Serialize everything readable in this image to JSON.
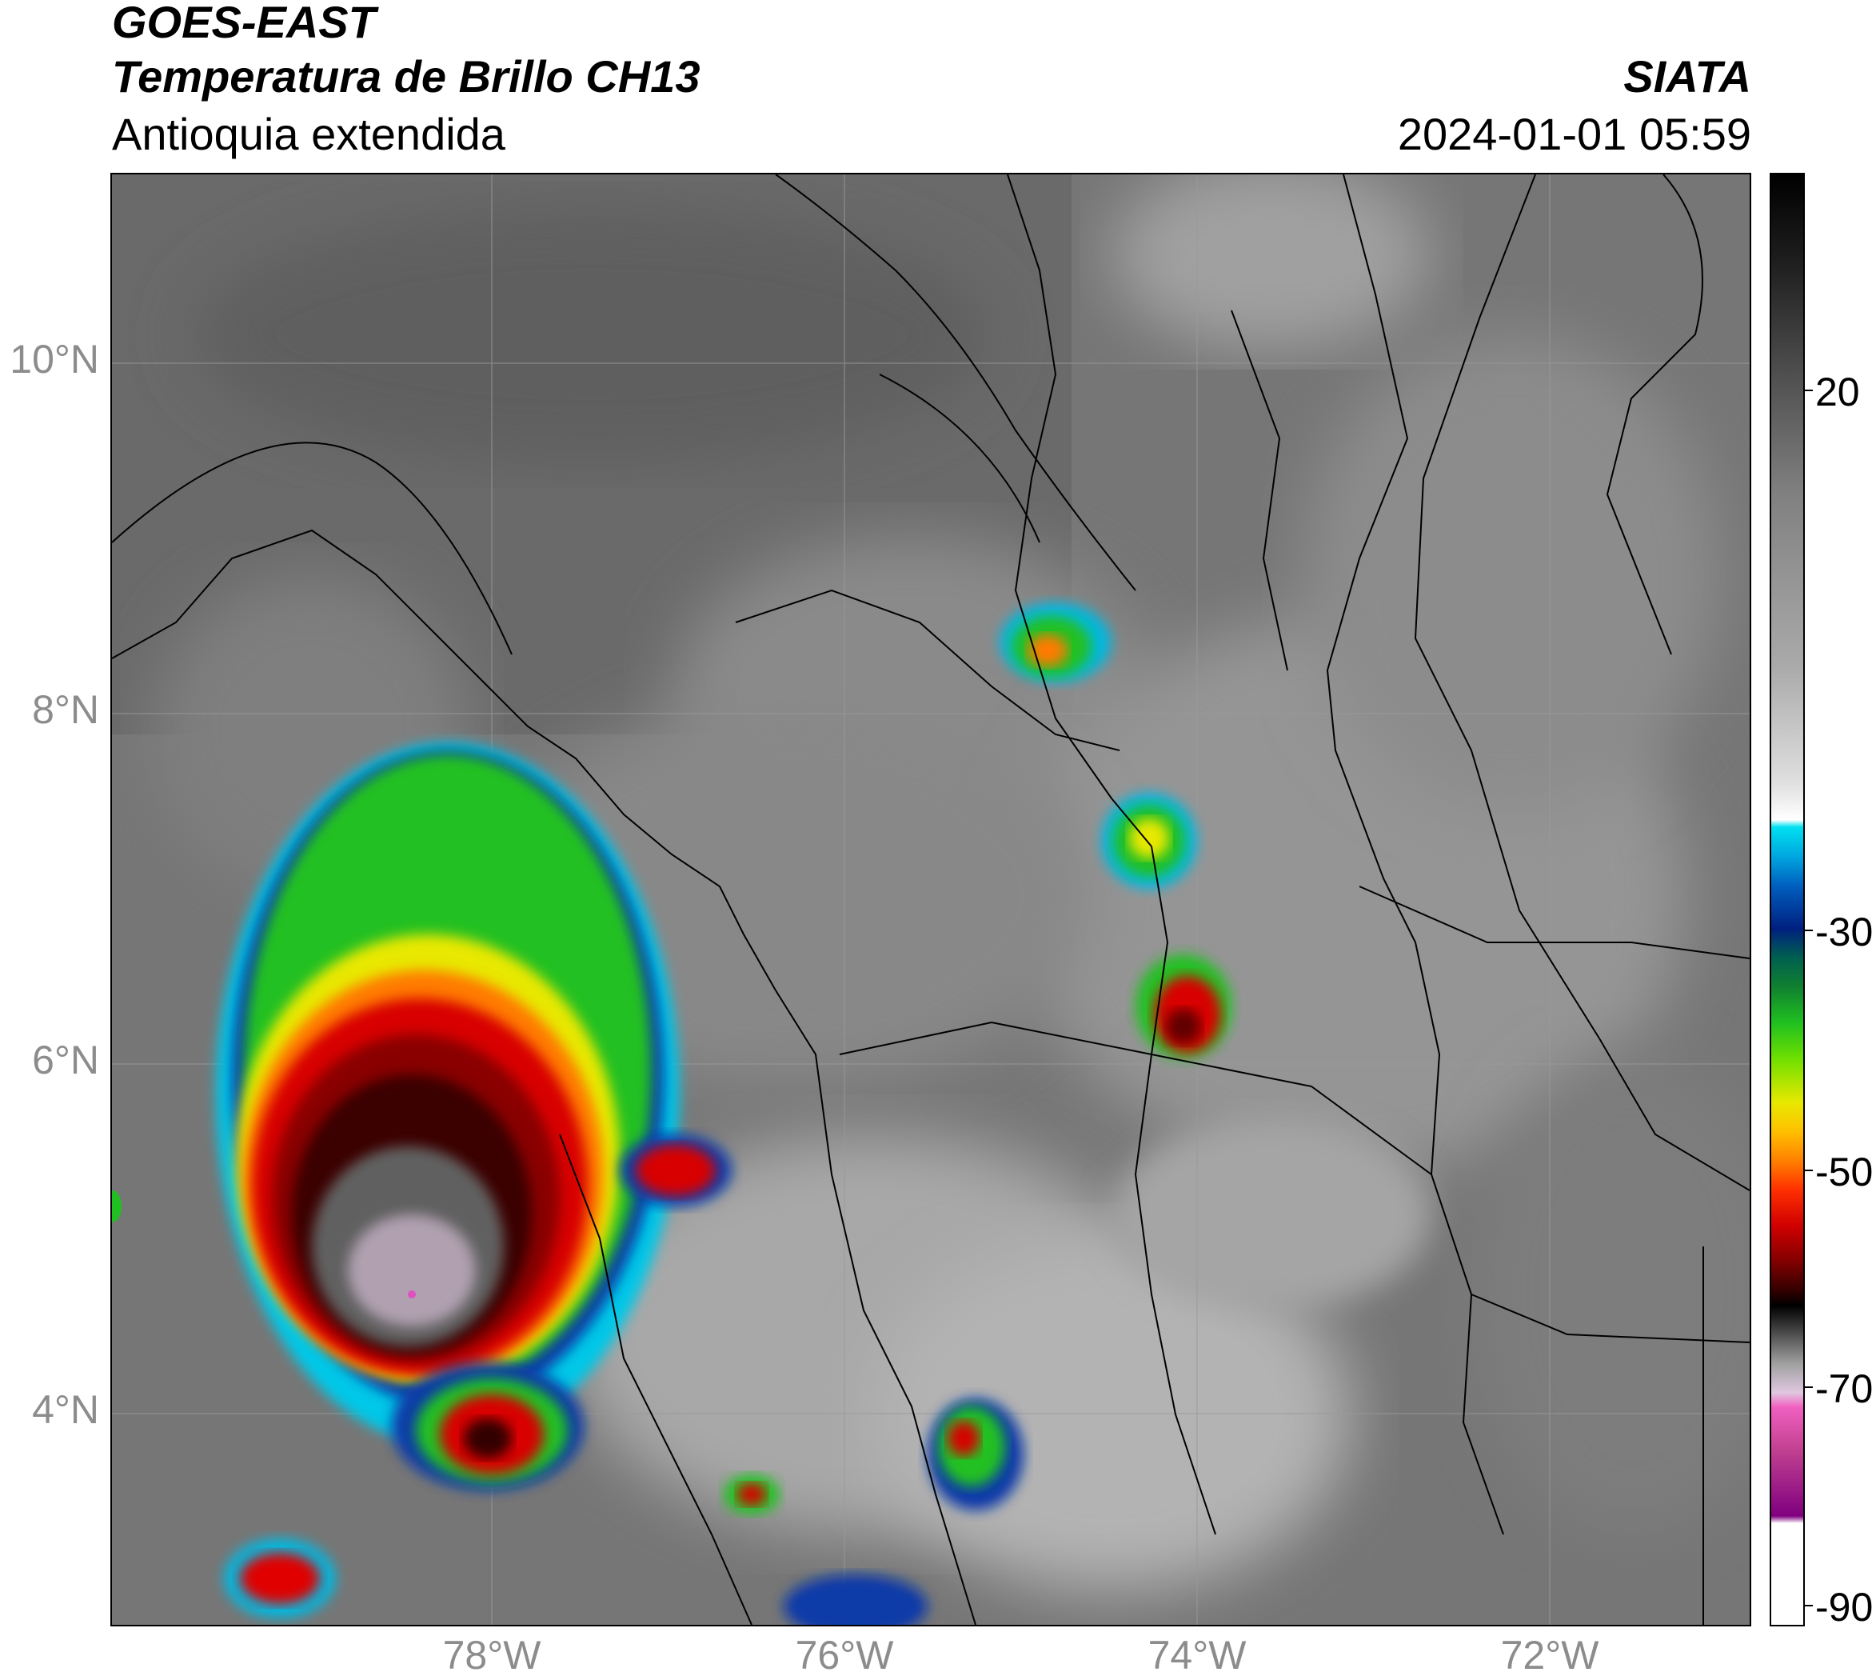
{
  "header": {
    "satellite": "GOES-EAST",
    "product": "Temperatura de Brillo CH13",
    "region": "Antioquia extendida",
    "agency": "SIATA",
    "datetime": "2024-01-01 05:59"
  },
  "map": {
    "lat_ticks": [
      "10°N",
      "8°N",
      "6°N",
      "4°N"
    ],
    "lon_ticks": [
      "78°W",
      "76°W",
      "74°W",
      "72°W"
    ],
    "lon_range": [
      -80.2,
      -70.8
    ],
    "lat_range": [
      2.9,
      11.1
    ]
  },
  "colorbar": {
    "tick_labels": [
      "20",
      "-30",
      "-50",
      "-70",
      "-90"
    ],
    "tick_values": [
      20,
      -30,
      -50,
      -70,
      -90
    ],
    "range": [
      -90,
      33
    ],
    "colors": {
      "cyan": "#00d8f0",
      "blue": "#0030b0",
      "green": "#20e020",
      "yellow": "#f0f000",
      "orange": "#ff8000",
      "red": "#e00000",
      "darkred": "#600000",
      "black": "#000000",
      "magenta": "#e050c0",
      "purple": "#700070"
    }
  }
}
